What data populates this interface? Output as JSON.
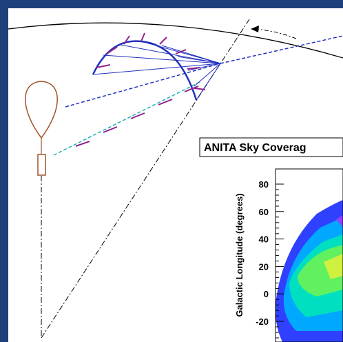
{
  "inset": {
    "title": "ANITA Sky Coverag",
    "y_label": "Galactic Longitude (degrees)",
    "yticks": [
      "80",
      "60",
      "40",
      "20",
      "0",
      "-20"
    ]
  }
}
